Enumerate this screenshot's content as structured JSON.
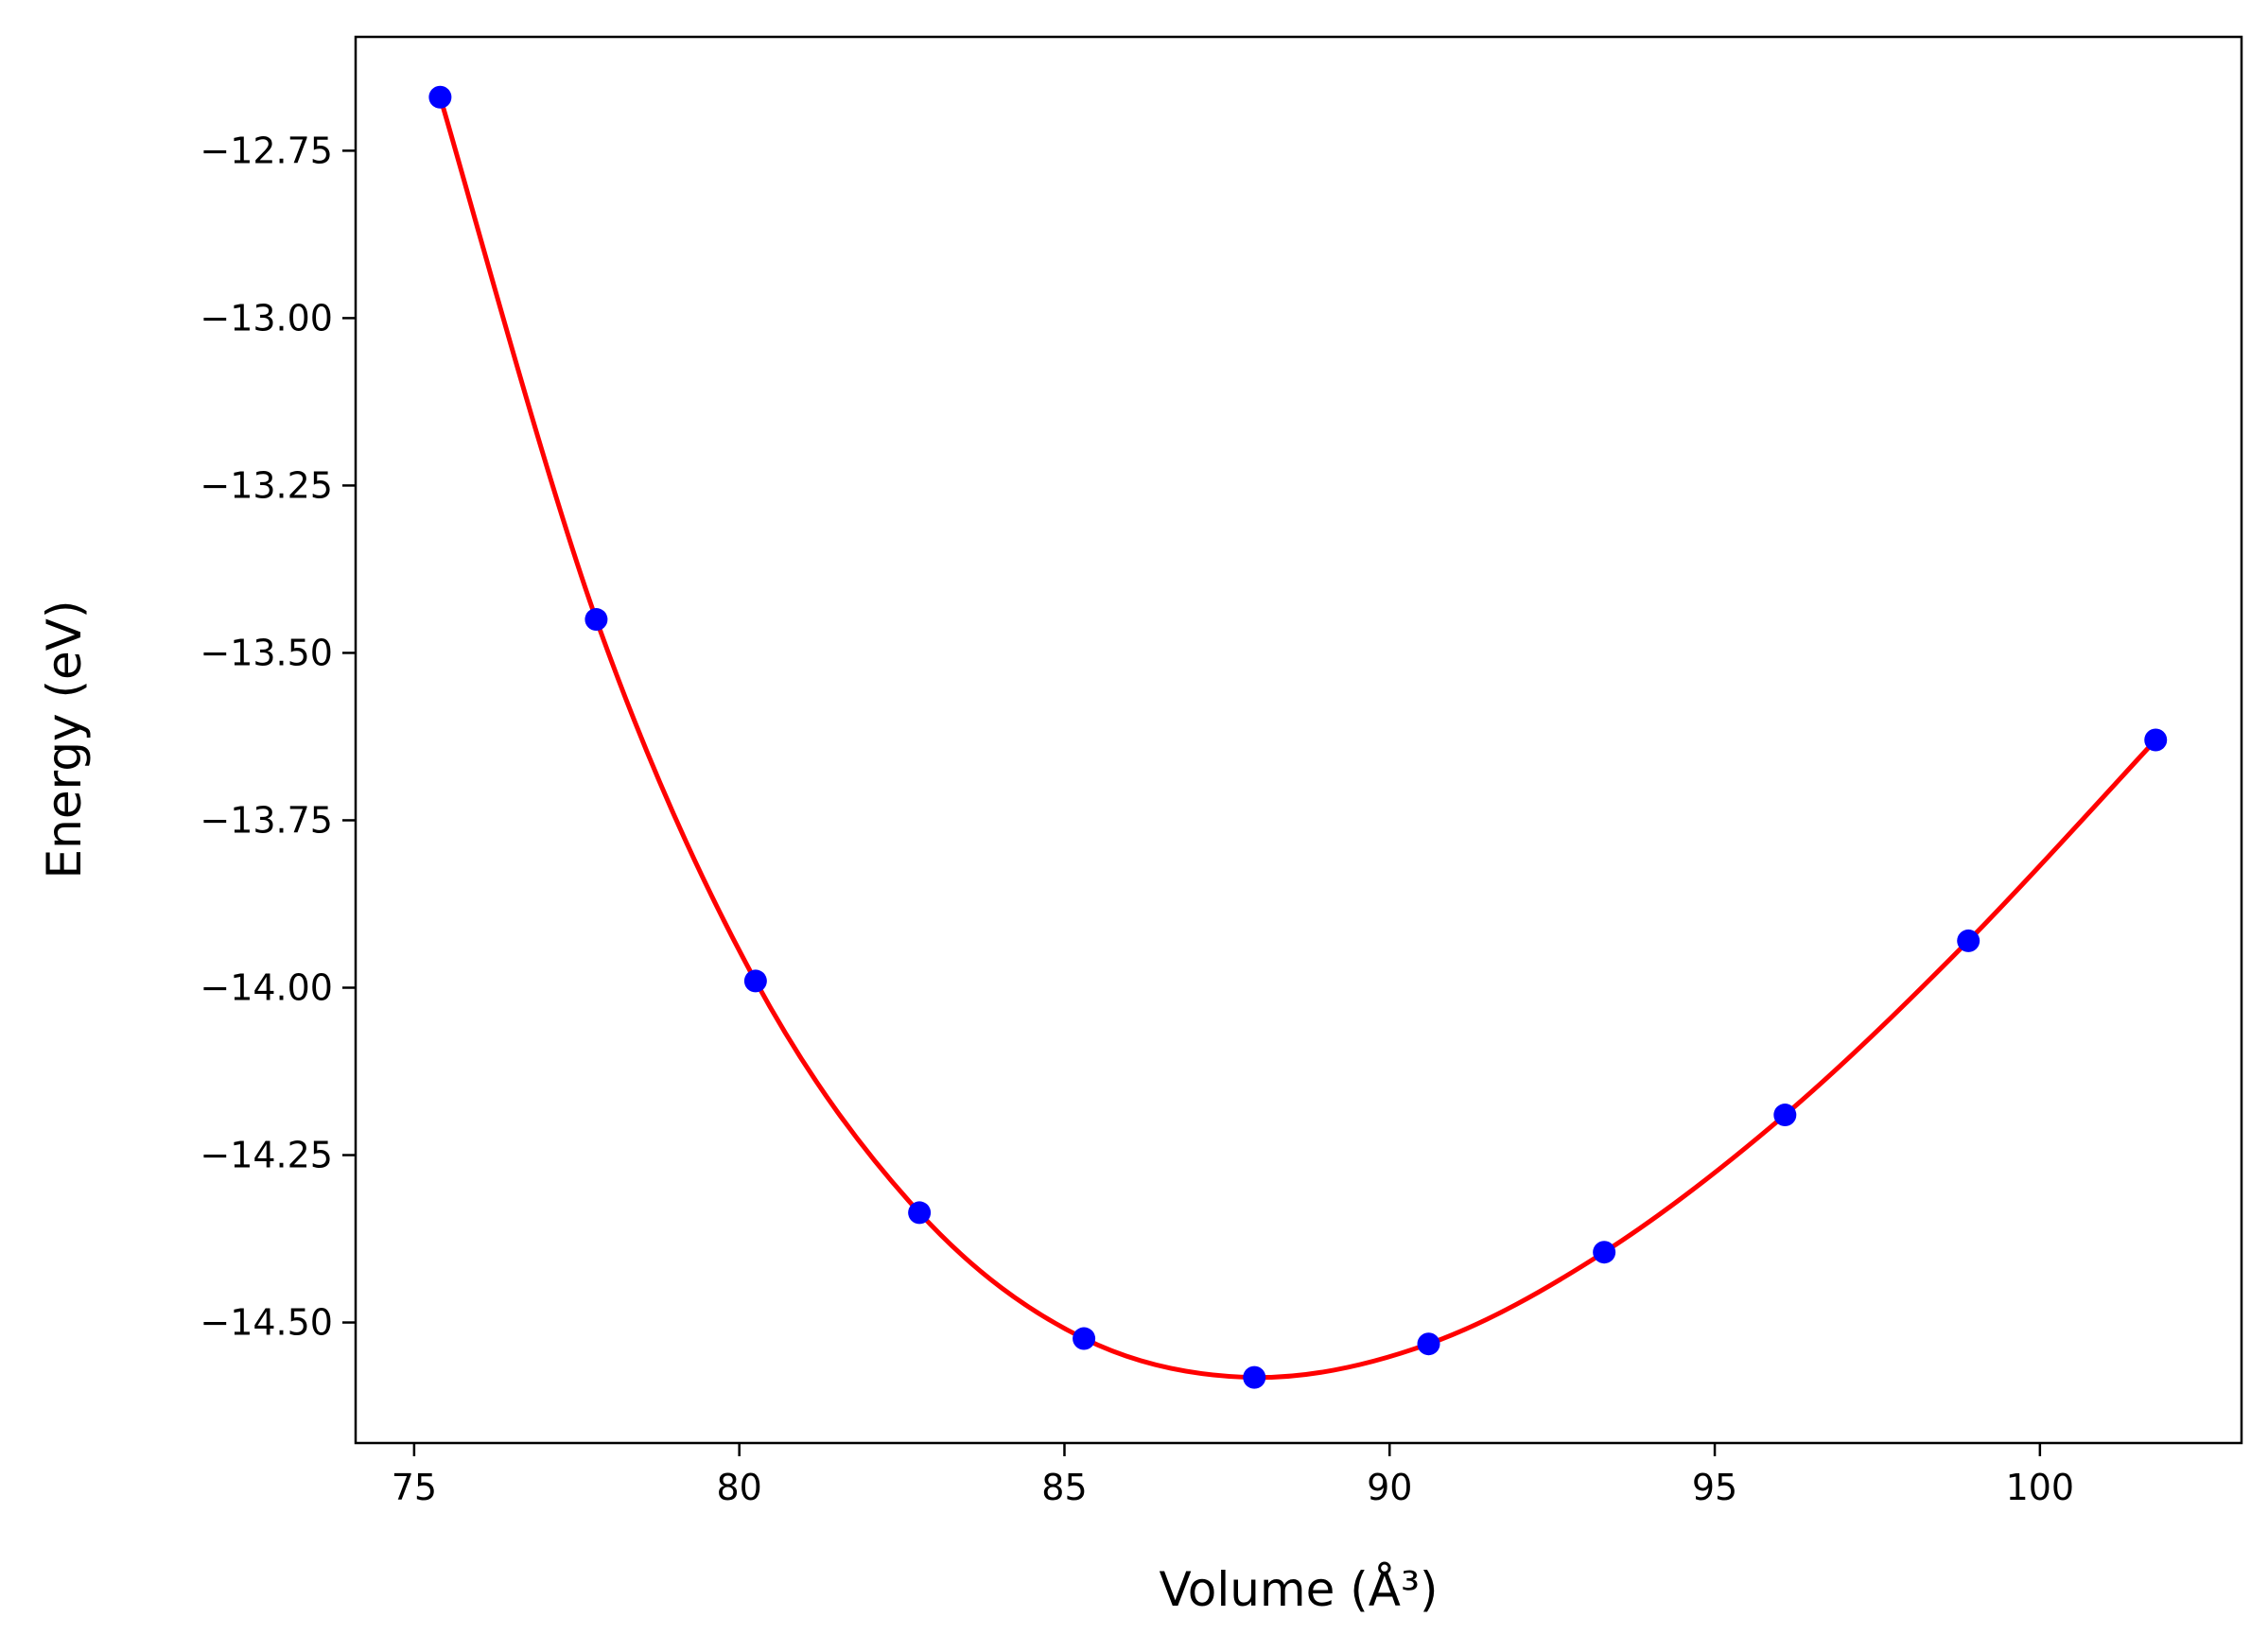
{
  "chart_data": {
    "type": "scatter",
    "title": "",
    "xlabel": "Volume (Å³)",
    "ylabel": "Energy (eV)",
    "xlim": [
      74.1,
      103.1
    ],
    "ylim": [
      -14.68,
      -12.58
    ],
    "x_ticks": [
      75,
      80,
      85,
      90,
      95,
      100
    ],
    "y_ticks": [
      -12.75,
      -13.0,
      -13.25,
      -13.5,
      -13.75,
      -14.0,
      -14.25,
      -14.5
    ],
    "x_tick_labels": [
      "75",
      "80",
      "85",
      "90",
      "95",
      "100"
    ],
    "y_tick_labels": [
      "−12.75",
      "−13.00",
      "−13.25",
      "−13.50",
      "−13.75",
      "−14.00",
      "−14.25",
      "−14.50"
    ],
    "grid": false,
    "series": [
      {
        "kind": "points",
        "color": "#0000ff",
        "x": [
          75.4,
          77.8,
          80.25,
          82.77,
          85.3,
          87.92,
          90.6,
          93.3,
          96.08,
          98.9,
          101.78
        ],
        "y": [
          -12.67,
          -13.45,
          -13.99,
          -14.336,
          -14.524,
          -14.582,
          -14.532,
          -14.395,
          -14.19,
          -13.93,
          -13.63
        ]
      },
      {
        "kind": "fit-curve",
        "color": "#ff0000",
        "x": [
          75.4,
          77.8,
          80.25,
          82.77,
          85.3,
          87.92,
          90.6,
          93.3,
          96.08,
          98.9,
          101.78
        ],
        "y": [
          -12.67,
          -13.45,
          -13.99,
          -14.336,
          -14.524,
          -14.582,
          -14.532,
          -14.395,
          -14.19,
          -13.93,
          -13.63
        ]
      }
    ]
  }
}
